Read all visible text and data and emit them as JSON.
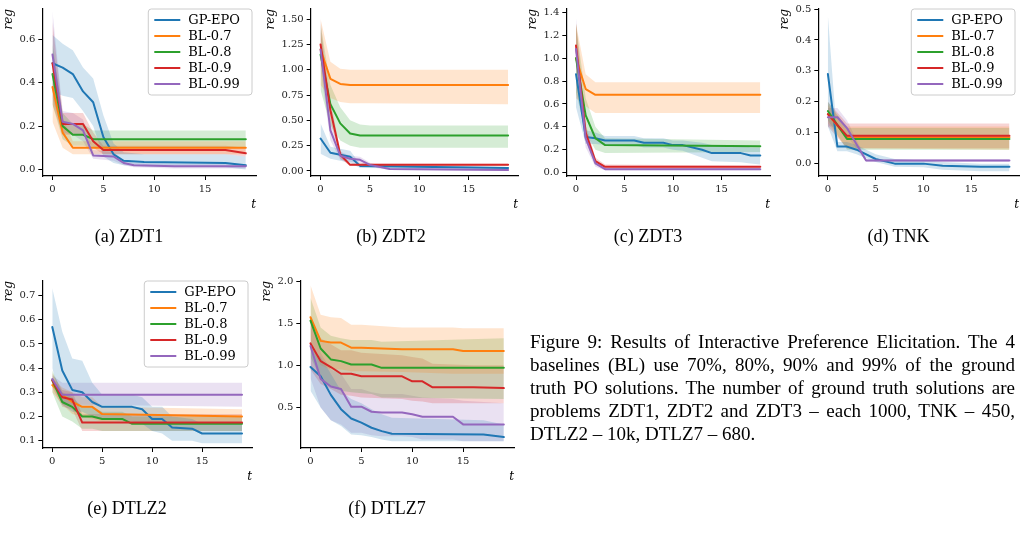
{
  "chart_data": [
    {
      "type": "line",
      "title": "(a) ZDT1",
      "xlabel": "t",
      "ylabel": "reg",
      "xlim": [
        -1,
        20
      ],
      "xticks": [
        0,
        5,
        10,
        15
      ],
      "ylim": [
        -0.03,
        0.74
      ],
      "yticks": [
        {
          "value": 0,
          "label": "0.0"
        },
        0.2,
        0.4,
        0.6
      ],
      "legend": "top right",
      "series": [
        {
          "name": "GP-EPO",
          "color": "#1f77b4",
          "x": [
            0,
            1,
            2,
            3,
            4,
            5,
            6,
            7,
            9,
            17,
            19
          ],
          "values": [
            0.49,
            0.47,
            0.44,
            0.36,
            0.31,
            0.15,
            0.07,
            0.04,
            0.035,
            0.03,
            0.02
          ],
          "lower": [
            0.36,
            0.34,
            0.33,
            0.27,
            0.2,
            0.06,
            0.03,
            0.02,
            0.015,
            0.01,
            0.0
          ],
          "upper": [
            0.62,
            0.58,
            0.55,
            0.47,
            0.42,
            0.25,
            0.12,
            0.08,
            0.07,
            0.07,
            0.06
          ]
        },
        {
          "name": "BL-0.7",
          "color": "#ff7f0e",
          "x": [
            0,
            1,
            2,
            3,
            19
          ],
          "values": [
            0.38,
            0.17,
            0.1,
            0.1,
            0.1
          ],
          "lower": [
            0.22,
            0.1,
            0.07,
            0.07,
            0.07
          ],
          "upper": [
            0.5,
            0.24,
            0.13,
            0.13,
            0.13
          ]
        },
        {
          "name": "BL-0.8",
          "color": "#2ca02c",
          "x": [
            0,
            1,
            2,
            3,
            4,
            5,
            19
          ],
          "values": [
            0.44,
            0.2,
            0.16,
            0.16,
            0.14,
            0.14,
            0.14
          ],
          "lower": [
            0.3,
            0.14,
            0.11,
            0.11,
            0.1,
            0.1,
            0.1
          ],
          "upper": [
            0.58,
            0.26,
            0.21,
            0.21,
            0.18,
            0.18,
            0.18
          ]
        },
        {
          "name": "BL-0.9",
          "color": "#d62728",
          "x": [
            0,
            1,
            2,
            3,
            4,
            5,
            17,
            19
          ],
          "values": [
            0.49,
            0.21,
            0.21,
            0.21,
            0.13,
            0.09,
            0.09,
            0.075
          ],
          "lower": [
            0.3,
            0.16,
            0.16,
            0.16,
            0.1,
            0.07,
            0.07,
            0.06
          ],
          "upper": [
            0.68,
            0.26,
            0.26,
            0.26,
            0.17,
            0.11,
            0.11,
            0.1
          ]
        },
        {
          "name": "BL-0.99",
          "color": "#9467bd",
          "x": [
            0,
            1,
            2,
            3,
            4,
            6,
            7,
            8,
            12,
            19
          ],
          "values": [
            0.53,
            0.22,
            0.21,
            0.18,
            0.065,
            0.06,
            0.03,
            0.02,
            0.015,
            0.015
          ],
          "lower": [
            0.33,
            0.17,
            0.16,
            0.13,
            0.05,
            0.04,
            0.02,
            0.01,
            0.005,
            0.005
          ],
          "upper": [
            0.73,
            0.27,
            0.26,
            0.23,
            0.09,
            0.08,
            0.04,
            0.03,
            0.025,
            0.025
          ]
        }
      ]
    },
    {
      "type": "line",
      "title": "(b) ZDT2",
      "xlabel": "t",
      "ylabel": "reg",
      "xlim": [
        -1,
        20
      ],
      "xticks": [
        0,
        5,
        10,
        15
      ],
      "ylim": [
        -0.05,
        1.6
      ],
      "yticks": [
        {
          "value": 0,
          "label": "0.00"
        },
        0.25,
        {
          "value": 0.5,
          "label": "0.50"
        },
        0.75,
        {
          "value": 1,
          "label": "1.00"
        },
        1.25,
        {
          "value": 1.5,
          "label": "1.50"
        }
      ],
      "series": [
        {
          "color": "#1f77b4",
          "x": [
            0,
            1,
            2,
            3,
            4,
            19
          ],
          "values": [
            0.32,
            0.18,
            0.16,
            0.14,
            0.05,
            0.03
          ],
          "lower": [
            0.17,
            0.12,
            0.1,
            0.08,
            0.03,
            0.02
          ],
          "upper": [
            0.47,
            0.24,
            0.22,
            0.2,
            0.07,
            0.04
          ]
        },
        {
          "color": "#ff7f0e",
          "x": [
            0,
            1,
            2,
            3,
            5,
            19
          ],
          "values": [
            1.2,
            0.91,
            0.86,
            0.85,
            0.85,
            0.85
          ],
          "lower": [
            0.85,
            0.72,
            0.68,
            0.67,
            0.67,
            0.66
          ],
          "upper": [
            1.5,
            1.08,
            1.01,
            1.0,
            1.0,
            1.0
          ]
        },
        {
          "color": "#2ca02c",
          "x": [
            0,
            1,
            2,
            3,
            4,
            5,
            19
          ],
          "values": [
            1.15,
            0.66,
            0.47,
            0.37,
            0.35,
            0.35,
            0.35
          ],
          "lower": [
            0.8,
            0.45,
            0.3,
            0.25,
            0.23,
            0.23,
            0.23
          ],
          "upper": [
            1.45,
            0.85,
            0.63,
            0.5,
            0.46,
            0.45,
            0.45
          ]
        },
        {
          "color": "#d62728",
          "x": [
            0,
            1,
            2,
            3,
            19
          ],
          "values": [
            1.25,
            0.6,
            0.16,
            0.06,
            0.06
          ],
          "lower": [
            1.1,
            0.5,
            0.12,
            0.05,
            0.05
          ],
          "upper": [
            1.4,
            0.7,
            0.2,
            0.07,
            0.07
          ]
        },
        {
          "color": "#9467bd",
          "x": [
            0,
            1,
            2,
            3,
            4,
            5,
            7,
            19
          ],
          "values": [
            1.2,
            0.4,
            0.15,
            0.12,
            0.11,
            0.06,
            0.02,
            0.01
          ],
          "lower": [
            1.0,
            0.3,
            0.11,
            0.09,
            0.08,
            0.04,
            0.01,
            0.0
          ],
          "upper": [
            1.5,
            0.5,
            0.19,
            0.15,
            0.14,
            0.08,
            0.03,
            0.02
          ]
        }
      ]
    },
    {
      "type": "line",
      "title": "(c) ZDT3",
      "xlabel": "t",
      "ylabel": "reg",
      "xlim": [
        -1,
        20
      ],
      "xticks": [
        0,
        5,
        10,
        15
      ],
      "ylim": [
        -0.03,
        1.43
      ],
      "yticks": [
        {
          "value": 0,
          "label": "0.0"
        },
        0.2,
        0.4,
        0.6,
        0.8,
        {
          "value": 1,
          "label": "1.0"
        },
        1.2,
        1.4
      ],
      "series": [
        {
          "color": "#1f77b4",
          "x": [
            0,
            1,
            2,
            3,
            6,
            7,
            9,
            10,
            11,
            13,
            14,
            17,
            18,
            19
          ],
          "values": [
            0.86,
            0.31,
            0.3,
            0.28,
            0.28,
            0.26,
            0.26,
            0.24,
            0.24,
            0.2,
            0.17,
            0.17,
            0.15,
            0.15
          ],
          "lower": [
            0.57,
            0.25,
            0.25,
            0.24,
            0.24,
            0.22,
            0.22,
            0.2,
            0.19,
            0.13,
            0.1,
            0.09,
            0.08,
            0.07
          ],
          "upper": [
            1.1,
            0.37,
            0.35,
            0.32,
            0.32,
            0.3,
            0.3,
            0.28,
            0.28,
            0.26,
            0.24,
            0.24,
            0.22,
            0.22
          ]
        },
        {
          "color": "#ff7f0e",
          "x": [
            0,
            1,
            2,
            19
          ],
          "values": [
            1.0,
            0.73,
            0.68,
            0.68
          ],
          "lower": [
            0.65,
            0.58,
            0.52,
            0.52
          ],
          "upper": [
            1.3,
            0.86,
            0.79,
            0.79
          ]
        },
        {
          "color": "#2ca02c",
          "x": [
            0,
            1,
            2,
            3,
            19
          ],
          "values": [
            1.0,
            0.5,
            0.3,
            0.24,
            0.23
          ],
          "lower": [
            0.7,
            0.35,
            0.2,
            0.17,
            0.18
          ],
          "upper": [
            1.3,
            0.65,
            0.4,
            0.3,
            0.28
          ]
        },
        {
          "color": "#d62728",
          "x": [
            0,
            1,
            2,
            3,
            19
          ],
          "values": [
            1.11,
            0.35,
            0.1,
            0.05,
            0.05
          ],
          "lower": [
            0.95,
            0.28,
            0.07,
            0.03,
            0.03
          ],
          "upper": [
            1.3,
            0.42,
            0.13,
            0.07,
            0.06
          ]
        },
        {
          "color": "#9467bd",
          "x": [
            0,
            1,
            2,
            3,
            19
          ],
          "values": [
            1.08,
            0.3,
            0.08,
            0.03,
            0.03
          ],
          "lower": [
            0.9,
            0.22,
            0.05,
            0.02,
            0.02
          ],
          "upper": [
            1.35,
            0.38,
            0.11,
            0.04,
            0.04
          ]
        }
      ]
    },
    {
      "type": "line",
      "title": "(d) TNK",
      "xlabel": "t",
      "ylabel": "reg",
      "xlim": [
        -1,
        20
      ],
      "xticks": [
        0,
        5,
        10,
        15
      ],
      "ylim": [
        -0.04,
        0.5
      ],
      "yticks": [
        {
          "value": 0,
          "label": "0.0"
        },
        0.1,
        0.2,
        0.3,
        0.4,
        0.5
      ],
      "legend": "top right",
      "series": [
        {
          "name": "GP-EPO",
          "color": "#1f77b4",
          "x": [
            0,
            1,
            2,
            3,
            5,
            7,
            10,
            12,
            16,
            19
          ],
          "values": [
            0.29,
            0.055,
            0.055,
            0.045,
            0.015,
            0.0,
            0.0,
            -0.007,
            -0.01,
            -0.01
          ],
          "lower": [
            0.12,
            0.04,
            0.04,
            0.03,
            0.005,
            -0.01,
            -0.012,
            -0.02,
            -0.025,
            -0.025
          ],
          "upper": [
            0.48,
            0.07,
            0.07,
            0.06,
            0.03,
            0.015,
            0.01,
            0.005,
            0.0,
            0.0
          ]
        },
        {
          "name": "BL-0.7",
          "color": "#ff7f0e",
          "x": [
            0,
            2,
            19
          ],
          "values": [
            0.16,
            0.085,
            0.085
          ],
          "lower": [
            0.13,
            0.05,
            0.045
          ],
          "upper": [
            0.19,
            0.12,
            0.12
          ]
        },
        {
          "name": "BL-0.8",
          "color": "#2ca02c",
          "x": [
            0,
            2,
            19
          ],
          "values": [
            0.17,
            0.08,
            0.08
          ],
          "lower": [
            0.14,
            0.045,
            0.045
          ],
          "upper": [
            0.2,
            0.115,
            0.115
          ]
        },
        {
          "name": "BL-0.9",
          "color": "#d62728",
          "x": [
            0,
            2,
            19
          ],
          "values": [
            0.16,
            0.09,
            0.09
          ],
          "lower": [
            0.12,
            0.05,
            0.05
          ],
          "upper": [
            0.2,
            0.13,
            0.13
          ]
        },
        {
          "name": "BL-0.99",
          "color": "#9467bd",
          "x": [
            0,
            1,
            2,
            4,
            19
          ],
          "values": [
            0.15,
            0.15,
            0.115,
            0.01,
            0.01
          ],
          "lower": [
            0.12,
            0.12,
            0.09,
            0.005,
            0.005
          ],
          "upper": [
            0.18,
            0.18,
            0.14,
            0.015,
            0.015
          ]
        }
      ]
    },
    {
      "type": "line",
      "title": "(e) DTLZ2",
      "xlabel": "t",
      "ylabel": "reg",
      "xlim": [
        -1,
        20
      ],
      "xticks": [
        0,
        5,
        10,
        15
      ],
      "ylim": [
        0.07,
        0.76
      ],
      "yticks": [
        0.1,
        0.2,
        0.3,
        0.4,
        0.5,
        0.6,
        0.7
      ],
      "legend": "top right",
      "series": [
        {
          "name": "GP-EPO",
          "color": "#1f77b4",
          "x": [
            0,
            1,
            2,
            3,
            4,
            5,
            8,
            9,
            10,
            11,
            12,
            14,
            15,
            19
          ],
          "values": [
            0.57,
            0.39,
            0.31,
            0.3,
            0.26,
            0.24,
            0.24,
            0.23,
            0.19,
            0.19,
            0.155,
            0.15,
            0.13,
            0.13
          ],
          "lower": [
            0.4,
            0.25,
            0.22,
            0.22,
            0.2,
            0.19,
            0.18,
            0.17,
            0.14,
            0.13,
            0.1,
            0.1,
            0.09,
            0.09
          ],
          "upper": [
            0.73,
            0.55,
            0.44,
            0.43,
            0.34,
            0.29,
            0.29,
            0.28,
            0.24,
            0.24,
            0.2,
            0.19,
            0.17,
            0.17
          ]
        },
        {
          "name": "BL-0.7",
          "color": "#ff7f0e",
          "x": [
            0,
            1,
            2,
            3,
            4,
            5,
            19
          ],
          "values": [
            0.33,
            0.29,
            0.26,
            0.24,
            0.24,
            0.21,
            0.2
          ],
          "lower": [
            0.3,
            0.25,
            0.21,
            0.2,
            0.19,
            0.18,
            0.18
          ],
          "upper": [
            0.36,
            0.32,
            0.3,
            0.28,
            0.28,
            0.24,
            0.23
          ]
        },
        {
          "name": "BL-0.8",
          "color": "#2ca02c",
          "x": [
            0,
            1,
            2,
            3,
            4,
            5,
            7,
            8,
            19
          ],
          "values": [
            0.35,
            0.26,
            0.24,
            0.2,
            0.2,
            0.19,
            0.19,
            0.17,
            0.17
          ],
          "lower": [
            0.3,
            0.2,
            0.18,
            0.15,
            0.15,
            0.14,
            0.14,
            0.14,
            0.14
          ],
          "upper": [
            0.39,
            0.3,
            0.28,
            0.24,
            0.24,
            0.22,
            0.22,
            0.2,
            0.2
          ]
        },
        {
          "name": "BL-0.9",
          "color": "#d62728",
          "x": [
            0,
            1,
            2,
            3,
            19
          ],
          "values": [
            0.35,
            0.28,
            0.27,
            0.175,
            0.175
          ],
          "lower": [
            0.32,
            0.24,
            0.23,
            0.14,
            0.14
          ],
          "upper": [
            0.38,
            0.31,
            0.3,
            0.21,
            0.21
          ]
        },
        {
          "name": "BL-0.99",
          "color": "#9467bd",
          "x": [
            0,
            1,
            19
          ],
          "values": [
            0.355,
            0.29,
            0.29
          ],
          "lower": [
            0.33,
            0.25,
            0.24
          ],
          "upper": [
            0.37,
            0.34,
            0.34
          ]
        }
      ]
    },
    {
      "type": "line",
      "title": "(f) DTLZ7",
      "xlabel": "t",
      "ylabel": "reg",
      "xlim": [
        -1,
        20
      ],
      "xticks": [
        0,
        5,
        10,
        15
      ],
      "ylim": [
        0.02,
        2.0
      ],
      "yticks": [
        0.5,
        {
          "value": 1,
          "label": "1.0"
        },
        1.5,
        {
          "value": 2,
          "label": "2.0"
        }
      ],
      "series": [
        {
          "color": "#1f77b4",
          "x": [
            0,
            1,
            2,
            3,
            4,
            5,
            6,
            7,
            8,
            17,
            19
          ],
          "values": [
            0.98,
            0.87,
            0.65,
            0.48,
            0.37,
            0.32,
            0.26,
            0.22,
            0.19,
            0.18,
            0.15
          ],
          "lower": [
            0.7,
            0.5,
            0.35,
            0.28,
            0.18,
            0.17,
            0.15,
            0.12,
            0.1,
            0.1,
            0.1
          ],
          "upper": [
            1.2,
            1.1,
            0.9,
            0.7,
            0.6,
            0.55,
            0.48,
            0.42,
            0.38,
            0.35,
            0.3
          ]
        },
        {
          "color": "#ff7f0e",
          "x": [
            0,
            1,
            2,
            3,
            4,
            5,
            9,
            14,
            15,
            19
          ],
          "values": [
            1.57,
            1.29,
            1.27,
            1.27,
            1.21,
            1.21,
            1.19,
            1.19,
            1.17,
            1.17
          ],
          "lower": [
            1.2,
            1.0,
            0.95,
            0.95,
            0.93,
            0.93,
            0.92,
            0.9,
            0.9,
            0.9
          ],
          "upper": [
            1.95,
            1.6,
            1.57,
            1.56,
            1.48,
            1.48,
            1.45,
            1.45,
            1.44,
            1.44
          ]
        },
        {
          "color": "#2ca02c",
          "x": [
            0,
            1,
            2,
            3,
            4,
            6,
            7,
            19
          ],
          "values": [
            1.53,
            1.2,
            1.07,
            1.05,
            1.01,
            1.01,
            0.97,
            0.97
          ],
          "lower": [
            1.1,
            0.85,
            0.75,
            0.7,
            0.68,
            0.66,
            0.62,
            0.6
          ],
          "upper": [
            1.8,
            1.45,
            1.35,
            1.32,
            1.3,
            1.3,
            1.28,
            1.32
          ]
        },
        {
          "color": "#d62728",
          "x": [
            0,
            1,
            2,
            3,
            4,
            5,
            9,
            10,
            11,
            12,
            16,
            19
          ],
          "values": [
            1.26,
            1.05,
            0.98,
            0.9,
            0.9,
            0.87,
            0.87,
            0.81,
            0.81,
            0.74,
            0.74,
            0.73
          ],
          "lower": [
            0.95,
            0.78,
            0.72,
            0.65,
            0.64,
            0.62,
            0.6,
            0.58,
            0.57,
            0.55,
            0.55,
            0.55
          ],
          "upper": [
            1.55,
            1.32,
            1.25,
            1.18,
            1.18,
            1.15,
            1.12,
            1.1,
            1.08,
            1.02,
            1.0,
            1.0
          ]
        },
        {
          "color": "#9467bd",
          "x": [
            0,
            1,
            2,
            3,
            4,
            5,
            6,
            7,
            9,
            10,
            11,
            14,
            15,
            19
          ],
          "values": [
            1.23,
            0.84,
            0.75,
            0.72,
            0.51,
            0.51,
            0.45,
            0.44,
            0.44,
            0.42,
            0.39,
            0.39,
            0.3,
            0.3
          ],
          "lower": [
            0.85,
            0.5,
            0.35,
            0.3,
            0.2,
            0.2,
            0.17,
            0.16,
            0.16,
            0.15,
            0.12,
            0.12,
            0.1,
            0.1
          ],
          "upper": [
            1.6,
            1.15,
            0.95,
            0.9,
            0.72,
            0.72,
            0.68,
            0.66,
            0.66,
            0.64,
            0.62,
            0.6,
            0.58,
            0.55
          ]
        }
      ]
    },
    {
      "type": "other",
      "annotations": [
        "Figure 9: Results of Interactive Preference Elicitation. The 4 baselines (BL) use 70%, 80%, 90% and 99% of the ground truth PO solutions. The number of ground truth solutions are problems ZDT1, ZDT2 and ZDT3 – each 1000, TNK – 450, DTLZ2 – 10k, DTLZ7 – 680."
      ]
    }
  ]
}
